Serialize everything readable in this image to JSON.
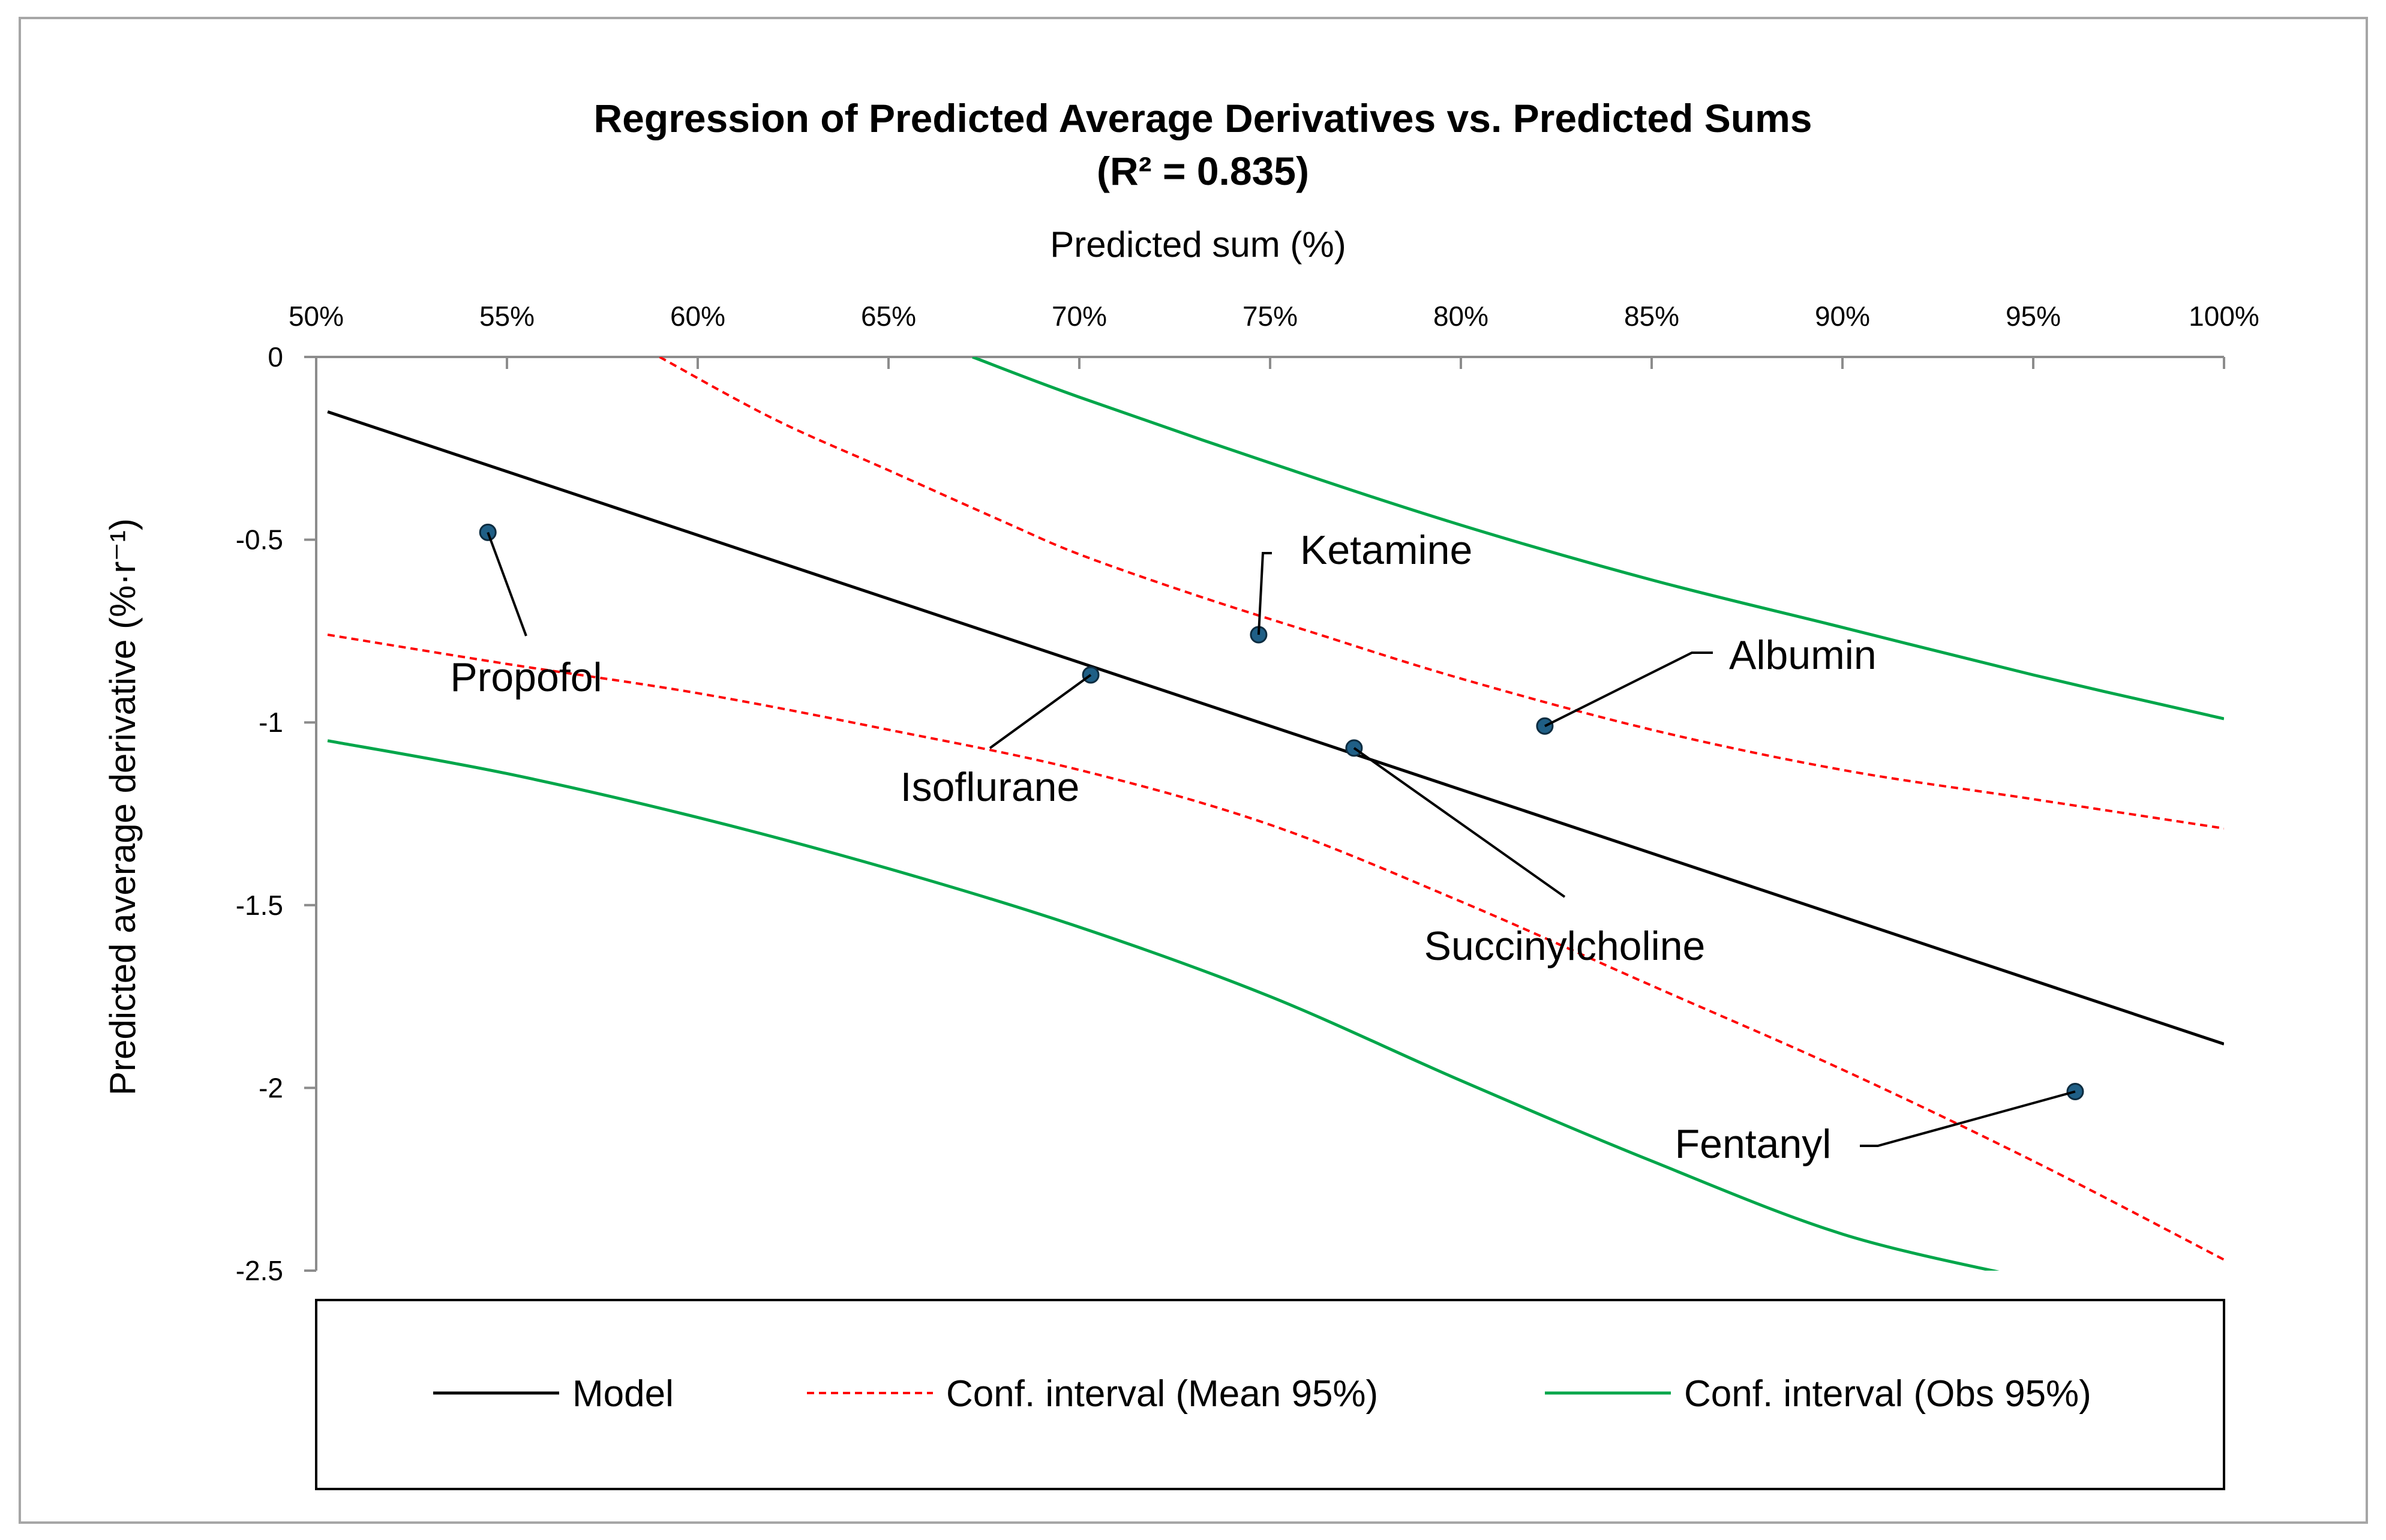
{
  "chart_data": {
    "type": "scatter",
    "title": "Regression of Predicted Average Derivatives vs. Predicted Sums",
    "subtitle": "(R² = 0.835)",
    "xlabel": "Predicted sum (%)",
    "ylabel": "Predicted average derivative (%·r⁻¹)",
    "xlim": [
      0.5,
      1.0
    ],
    "ylim": [
      -2.5,
      0
    ],
    "x_ticks": [
      0.5,
      0.55,
      0.6,
      0.65,
      0.7,
      0.75,
      0.8,
      0.85,
      0.9,
      0.95,
      1.0
    ],
    "x_tick_labels": [
      "50%",
      "55%",
      "60%",
      "65%",
      "70%",
      "75%",
      "80%",
      "85%",
      "90%",
      "95%",
      "100%"
    ],
    "y_ticks": [
      0,
      -0.5,
      -1,
      -1.5,
      -2,
      -2.5
    ],
    "y_tick_labels": [
      "0",
      "-0.5",
      "-1",
      "-1.5",
      "-2",
      "-2.5"
    ],
    "x_axis_position": "top",
    "grid": false,
    "legend_position": "bottom",
    "point_color": "#1f5f86",
    "points": [
      {
        "name": "Propofol",
        "x": 0.545,
        "y": -0.48
      },
      {
        "name": "Isoflurane",
        "x": 0.703,
        "y": -0.87
      },
      {
        "name": "Ketamine",
        "x": 0.747,
        "y": -0.76
      },
      {
        "name": "Succinylcholine",
        "x": 0.772,
        "y": -1.07
      },
      {
        "name": "Albumin",
        "x": 0.822,
        "y": -1.01
      },
      {
        "name": "Fentanyl",
        "x": 0.961,
        "y": -2.01
      }
    ],
    "series": [
      {
        "name": "Model",
        "color": "#000000",
        "style": "solid",
        "x": [
          0.503,
          1.0
        ],
        "y": [
          -0.15,
          -1.88
        ]
      },
      {
        "name": "Conf. interval (Mean 95%)",
        "color": "#ff0000",
        "style": "dashed",
        "x": [
          0.59,
          0.62,
          0.65,
          0.68,
          0.7,
          0.73,
          0.76,
          0.8,
          0.85,
          0.9,
          0.95,
          1.0
        ],
        "y": [
          0.0,
          -0.17,
          -0.31,
          -0.45,
          -0.54,
          -0.65,
          -0.75,
          -0.88,
          -1.02,
          -1.13,
          -1.21,
          -1.29
        ]
      },
      {
        "name": "Conf. interval (Mean 95%)",
        "color": "#ff0000",
        "style": "dashed",
        "x": [
          0.503,
          0.55,
          0.6,
          0.65,
          0.7,
          0.75,
          0.8,
          0.85,
          0.9,
          0.95,
          1.0
        ],
        "y": [
          -0.76,
          -0.84,
          -0.92,
          -1.02,
          -1.13,
          -1.28,
          -1.49,
          -1.72,
          -1.95,
          -2.2,
          -2.47
        ]
      },
      {
        "name": "Conf. interval (Obs 95%)",
        "color": "#00a64a",
        "style": "solid",
        "x": [
          0.672,
          0.7,
          0.75,
          0.8,
          0.85,
          0.9,
          0.95,
          1.0
        ],
        "y": [
          0.0,
          -0.11,
          -0.29,
          -0.46,
          -0.61,
          -0.74,
          -0.87,
          -0.99
        ]
      },
      {
        "name": "Conf. interval (Obs 95%)",
        "color": "#00a64a",
        "style": "solid",
        "x": [
          0.503,
          0.55,
          0.6,
          0.65,
          0.7,
          0.75,
          0.8,
          0.85,
          0.9,
          0.948
        ],
        "y": [
          -1.05,
          -1.14,
          -1.26,
          -1.4,
          -1.56,
          -1.75,
          -1.98,
          -2.2,
          -2.4,
          -2.52
        ]
      }
    ],
    "legend": [
      {
        "label": "Model",
        "color": "#000000",
        "style": "solid"
      },
      {
        "label": "Conf. interval (Mean 95%)",
        "color": "#ff0000",
        "style": "dashed"
      },
      {
        "label": "Conf. interval (Obs 95%)",
        "color": "#00a64a",
        "style": "solid"
      }
    ]
  }
}
